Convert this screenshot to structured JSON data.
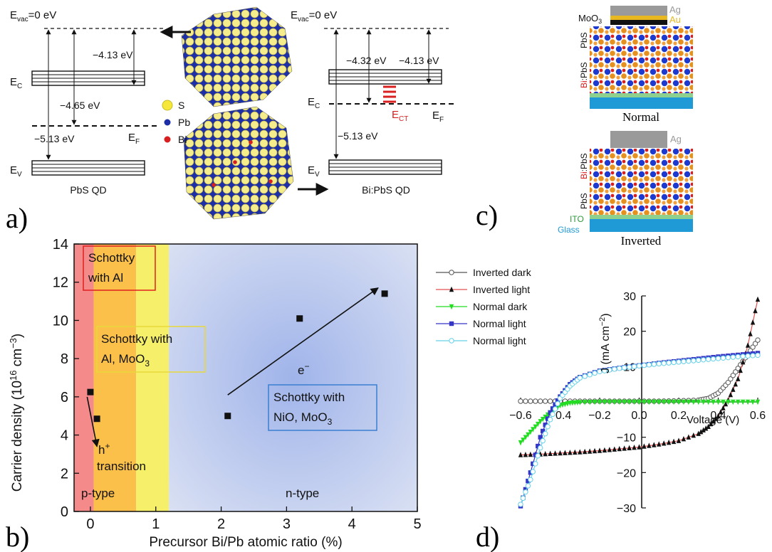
{
  "panel_labels": {
    "a": "a)",
    "b": "b)",
    "c": "c)",
    "d": "d)"
  },
  "panel_a": {
    "left": {
      "evac": "E",
      "evac_sub": "vac",
      "evac_val": "=0 eV",
      "ec": "E",
      "ec_sub": "C",
      "ev": "E",
      "ev_sub": "V",
      "ef": "E",
      "ef_sub": "F",
      "e1": "−4.13 eV",
      "e2": "−4.65 eV",
      "e3": "−5.13 eV",
      "caption": "PbS QD"
    },
    "right": {
      "evac": "E",
      "evac_sub": "vac",
      "evac_val": "=0 eV",
      "ec": "E",
      "ec_sub": "C",
      "ev": "E",
      "ev_sub": "V",
      "ef": "E",
      "ef_sub": "F",
      "ect": "E",
      "ect_sub": "CT",
      "e1": "−4.32 eV",
      "e2": "−4.13 eV",
      "e3": "−5.13 eV",
      "caption": "Bi:PbS QD"
    },
    "legend": [
      {
        "label": "S",
        "color": "#f5e83a"
      },
      {
        "label": "Pb",
        "color": "#1d2fa8"
      },
      {
        "label": "Bi",
        "color": "#d81e1e"
      }
    ]
  },
  "panel_c": {
    "normal": {
      "ag": "Ag",
      "au": "Au",
      "moo3": "MoO",
      "moo3_sub": "3",
      "top_layer": "PbS",
      "bottom_layer_a": "Bi",
      "bottom_layer_b": ":PbS",
      "caption": "Normal"
    },
    "inverted": {
      "ag": "Ag",
      "top_layer_a": "Bi",
      "top_layer_b": ":PbS",
      "bottom_layer": "PbS",
      "ito": "ITO",
      "glass": "Glass",
      "caption": "Inverted"
    },
    "colors": {
      "ag": "#9a9a9a",
      "au": "#e7b820",
      "ito": "#2e9b3a",
      "glass": "#1f9ad6",
      "bi": "#d82020"
    }
  },
  "chart_data": [
    {
      "type": "scatter",
      "panel": "b",
      "xlabel": "Precursor Bi/Pb atomic ratio (%)",
      "ylabel_main": "Carrier density (10",
      "ylabel_sup1": "16",
      "ylabel_mid": " cm",
      "ylabel_sup2": "−3",
      "ylabel_end": ")",
      "xlim": [
        -0.25,
        5
      ],
      "ylim": [
        0,
        14
      ],
      "xticks": [
        "0",
        "1",
        "2",
        "3",
        "4",
        "5"
      ],
      "yticks": [
        "0",
        "2",
        "4",
        "6",
        "8",
        "10",
        "12",
        "14"
      ],
      "x": [
        0.0,
        0.1,
        2.1,
        3.2,
        4.5
      ],
      "y": [
        6.25,
        4.85,
        5.0,
        10.1,
        11.4
      ],
      "regions": [
        {
          "label": "p-type",
          "x0": -0.25,
          "x1": 0.05,
          "color": "#f58a8a"
        },
        {
          "label": "",
          "x0": 0.05,
          "x1": 0.7,
          "color": "#fbc04a"
        },
        {
          "label": "",
          "x0": 0.7,
          "x1": 1.2,
          "color": "#f6ef6a"
        },
        {
          "label": "n-type",
          "x0": 1.2,
          "x1": 5,
          "color": "#a9b8e4"
        }
      ],
      "annotations": {
        "box1_l1": "Schottky",
        "box1_l2": "with Al",
        "box2_l1": "Schottky with",
        "box2_l2": "Al, MoO",
        "box2_sub": "3",
        "box3_l1": "Schottky with",
        "box3_l2": "NiO, MoO",
        "box3_sub": "3",
        "hplus": "h",
        "hplus_sup": "+",
        "transition": "transition",
        "eminus": "e",
        "eminus_sup": "−",
        "ptype": "p-type",
        "ntype": "n-type"
      },
      "arrows": [
        {
          "from": [
            -0.05,
            6.0
          ],
          "to": [
            0.1,
            3.4
          ]
        },
        {
          "from": [
            2.1,
            6.1
          ],
          "to": [
            4.4,
            11.7
          ]
        }
      ]
    },
    {
      "type": "line",
      "panel": "d",
      "xlabel": "Voltage (V)",
      "ylabel": "J (mA cm",
      "ylabel_sup": "−2",
      "ylabel_end": ")",
      "xlim": [
        -0.6,
        0.6
      ],
      "ylim": [
        -30,
        30
      ],
      "xticks": [
        "−0.6",
        "−0.4",
        "−0.2",
        "0.0",
        "0.2",
        "0.4",
        "0.6"
      ],
      "yticks": [
        "−30",
        "−20",
        "−10",
        "0",
        "10",
        "20",
        "30"
      ],
      "series": [
        {
          "name": "Inverted dark",
          "color": "#555555",
          "marker": "circle-open",
          "x": [
            -0.6,
            -0.5,
            -0.4,
            -0.3,
            -0.2,
            -0.1,
            0.0,
            0.1,
            0.2,
            0.3,
            0.35,
            0.4,
            0.45,
            0.5,
            0.55,
            0.6
          ],
          "y": [
            0.2,
            0.2,
            0.2,
            0.2,
            0.2,
            0.2,
            0.2,
            0.2,
            0.3,
            0.5,
            1.0,
            2.5,
            5.5,
            9.5,
            13.5,
            17.5
          ]
        },
        {
          "name": "Inverted light",
          "color": "#e05050",
          "marker": "triangle-up",
          "x": [
            -0.6,
            -0.5,
            -0.4,
            -0.3,
            -0.2,
            -0.1,
            0.0,
            0.1,
            0.2,
            0.3,
            0.35,
            0.4,
            0.45,
            0.5,
            0.55,
            0.6
          ],
          "y": [
            -15,
            -14.8,
            -14.5,
            -14.2,
            -13.8,
            -13.3,
            -12.8,
            -12.0,
            -11.0,
            -9.0,
            -7.0,
            -4.0,
            0.5,
            6.5,
            16.0,
            29.0
          ]
        },
        {
          "name": "Normal dark",
          "color": "#22dd22",
          "marker": "triangle-down",
          "x": [
            -0.6,
            -0.55,
            -0.5,
            -0.45,
            -0.4,
            -0.35,
            -0.3,
            -0.2,
            -0.1,
            0.0,
            0.1,
            0.2,
            0.3,
            0.4,
            0.5,
            0.6
          ],
          "y": [
            -11.5,
            -8.5,
            -5.5,
            -3.0,
            -1.0,
            -0.3,
            -0.1,
            0,
            0,
            0,
            0,
            0,
            0,
            0,
            0,
            0
          ]
        },
        {
          "name": "Normal light",
          "color": "#3535c8",
          "marker": "square",
          "x": [
            -0.6,
            -0.55,
            -0.5,
            -0.45,
            -0.4,
            -0.35,
            -0.3,
            -0.2,
            -0.1,
            0.0,
            0.1,
            0.2,
            0.3,
            0.4,
            0.5,
            0.6
          ],
          "y": [
            -29.5,
            -20,
            -10,
            -3.0,
            1.5,
            5.0,
            7.0,
            8.8,
            9.6,
            10.3,
            11.0,
            11.6,
            12.2,
            12.8,
            13.3,
            13.8
          ]
        },
        {
          "name": "Normal light",
          "color": "#66d0e8",
          "marker": "circle-open",
          "x": [
            -0.6,
            -0.55,
            -0.5,
            -0.45,
            -0.4,
            -0.35,
            -0.3,
            -0.2,
            -0.1,
            0.0,
            0.1,
            0.2,
            0.3,
            0.4,
            0.5,
            0.6
          ],
          "y": [
            -29,
            -22,
            -13,
            -5,
            1.0,
            4.5,
            6.8,
            8.6,
            9.5,
            10.2,
            10.8,
            11.3,
            11.8,
            12.3,
            12.8,
            13.2
          ]
        }
      ]
    }
  ]
}
